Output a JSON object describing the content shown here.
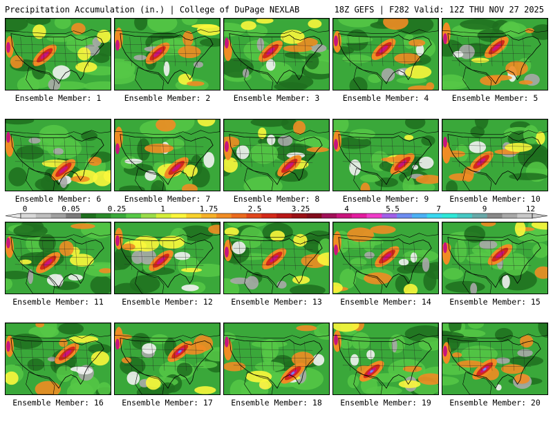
{
  "header": {
    "title_left": "Precipitation Accumulation (in.) | College of DuPage NEXLAB",
    "title_right": "18Z GEFS | F282 Valid: 12Z THU NOV 27 2025"
  },
  "legend": {
    "labels": [
      "0",
      "0.05",
      "0.25",
      "1",
      "1.75",
      "2.5",
      "3.25",
      "4",
      "5.5",
      "7",
      "9",
      "12"
    ],
    "colors": [
      "#d8d8d8",
      "#bebebe",
      "#a0a0a0",
      "#7a7a7a",
      "#1e6e1e",
      "#2a8a2a",
      "#3aa83a",
      "#56c846",
      "#9adc4a",
      "#d4ee3a",
      "#fbf63c",
      "#f8d22c",
      "#f6b028",
      "#f08c24",
      "#ea6a1e",
      "#e0461c",
      "#d22a1a",
      "#b81818",
      "#9a1016",
      "#820c1c",
      "#a01058",
      "#c8147c",
      "#e21c9e",
      "#ee3cc8",
      "#a060e8",
      "#6c8cf0",
      "#4cb0f4",
      "#3ad8f0",
      "#2ee8d8",
      "#46c8c4",
      "#68a8a8",
      "#888888",
      "#a8a8a8",
      "#c8c8c8"
    ]
  },
  "map_colors": {
    "dark_green": "#1e6e1e",
    "mid_green": "#3aa83a",
    "light_green": "#56c846",
    "yellow": "#fbf63c",
    "orange": "#f08c24",
    "red": "#d22a1a",
    "magenta": "#c8147c",
    "blue": "#6c8cf0",
    "gray": "#a8a8a8",
    "white": "#f2f2f2"
  },
  "panels": [
    {
      "label": "Ensemble Member: 1"
    },
    {
      "label": "Ensemble Member: 2"
    },
    {
      "label": "Ensemble Member: 3"
    },
    {
      "label": "Ensemble Member: 4"
    },
    {
      "label": "Ensemble Member: 5"
    },
    {
      "label": "Ensemble Member: 6"
    },
    {
      "label": "Ensemble Member: 7"
    },
    {
      "label": "Ensemble Member: 8"
    },
    {
      "label": "Ensemble Member: 9"
    },
    {
      "label": "Ensemble Member: 10"
    },
    {
      "label": "Ensemble Member: 11"
    },
    {
      "label": "Ensemble Member: 12"
    },
    {
      "label": "Ensemble Member: 13"
    },
    {
      "label": "Ensemble Member: 14"
    },
    {
      "label": "Ensemble Member: 15"
    },
    {
      "label": "Ensemble Member: 16"
    },
    {
      "label": "Ensemble Member: 17"
    },
    {
      "label": "Ensemble Member: 18"
    },
    {
      "label": "Ensemble Member: 19"
    },
    {
      "label": "Ensemble Member: 20"
    }
  ]
}
